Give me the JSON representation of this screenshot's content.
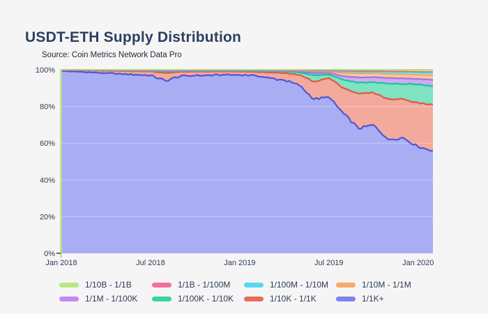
{
  "header": {
    "title": "USDT-ETH Supply Distribution",
    "source": "Source: Coin Metrics Network Data Pro"
  },
  "colors": {
    "background": "#f5f5f6",
    "title": "#2d3f5e",
    "label": "#2e3c52",
    "axis_line": "#b9e183",
    "zero_tick": "#3b4a57",
    "gridline": "rgba(255,255,255,0.38)"
  },
  "chart_data": {
    "type": "area",
    "stacking": "percent",
    "title": "USDT-ETH Supply Distribution",
    "xlabel": "",
    "ylabel": "",
    "ylim": [
      0,
      100
    ],
    "grid": "horizontal",
    "grid_values": [
      20,
      40,
      60,
      80
    ],
    "legend_position": "bottom",
    "y_tick_values": [
      0,
      20,
      40,
      60,
      80,
      100
    ],
    "y_tick_labels": [
      "0%",
      "20%",
      "40%",
      "60%",
      "80%",
      "100%"
    ],
    "x": [
      "2018-01",
      "2018-02",
      "2018-03",
      "2018-04",
      "2018-05",
      "2018-06",
      "2018-07",
      "2018-08",
      "2018-09",
      "2018-10",
      "2018-11",
      "2018-12",
      "2019-01",
      "2019-02",
      "2019-03",
      "2019-04",
      "2019-05",
      "2019-06",
      "2019-07",
      "2019-08",
      "2019-09",
      "2019-10",
      "2019-11",
      "2019-12",
      "2020-01",
      "2020-02"
    ],
    "x_tick_indices": [
      0,
      6,
      12,
      18,
      24
    ],
    "x_tick_labels": [
      "Jan 2018",
      "Jul 2018",
      "Jan 2019",
      "Jul 2019",
      "Jan 2020"
    ],
    "series": [
      {
        "name": "1/1K+",
        "stroke": "#5056d6",
        "fill": "#a9adf3",
        "legend_color": "#7d82ee",
        "values": [
          99.3,
          99.0,
          98.6,
          98.2,
          97.8,
          97.3,
          97.0,
          94.0,
          96.5,
          96.8,
          97.0,
          97.2,
          97.2,
          97.0,
          95.5,
          94.3,
          91.5,
          84.0,
          85.0,
          76.0,
          68.0,
          70.0,
          62.0,
          63.0,
          58.0,
          56.0
        ]
      },
      {
        "name": "1/10K - 1/1K",
        "stroke": "#e25840",
        "fill": "#f3a99c",
        "legend_color": "#ec6a56",
        "values": [
          0.5,
          0.7,
          1.0,
          1.3,
          1.6,
          1.9,
          2.1,
          4.3,
          2.4,
          2.2,
          2.0,
          1.9,
          1.8,
          1.9,
          3.0,
          3.9,
          5.7,
          9.5,
          10.5,
          14.0,
          19.0,
          17.5,
          22.0,
          21.0,
          24.0,
          25.0
        ]
      },
      {
        "name": "1/100K - 1/10K",
        "stroke": "#19c795",
        "fill": "#7fe2c0",
        "legend_color": "#36d49e",
        "values": [
          0.05,
          0.1,
          0.1,
          0.15,
          0.2,
          0.3,
          0.35,
          0.7,
          0.4,
          0.35,
          0.4,
          0.3,
          0.4,
          0.45,
          0.7,
          0.9,
          1.4,
          3.5,
          1.8,
          4.5,
          6.0,
          5.7,
          8.5,
          8.3,
          10.0,
          10.0
        ]
      },
      {
        "name": "1/1M - 1/100K",
        "stroke": "#a96cf0",
        "fill": "#cdabf5",
        "legend_color": "#c289f4",
        "values": [
          0.05,
          0.05,
          0.1,
          0.1,
          0.1,
          0.15,
          0.15,
          0.3,
          0.2,
          0.2,
          0.15,
          0.2,
          0.2,
          0.2,
          0.25,
          0.3,
          0.5,
          1.3,
          0.9,
          2.0,
          2.8,
          2.8,
          3.0,
          3.0,
          3.0,
          3.5
        ]
      },
      {
        "name": "1/10M - 1/1M",
        "stroke": "#f49b4e",
        "fill": "#f9c893",
        "legend_color": "#f9a868",
        "values": [
          0.03,
          0.05,
          0.07,
          0.1,
          0.1,
          0.12,
          0.15,
          0.3,
          0.2,
          0.15,
          0.15,
          0.12,
          0.12,
          0.15,
          0.2,
          0.2,
          0.35,
          0.7,
          0.7,
          1.7,
          2.2,
          2.0,
          2.3,
          2.3,
          2.3,
          2.5
        ]
      },
      {
        "name": "1/100M - 1/10M",
        "stroke": "#3fd2e6",
        "fill": "#9ce9f3",
        "legend_color": "#55d9ee",
        "values": [
          0.02,
          0.03,
          0.03,
          0.05,
          0.07,
          0.08,
          0.08,
          0.15,
          0.1,
          0.1,
          0.1,
          0.1,
          0.1,
          0.1,
          0.13,
          0.15,
          0.2,
          0.4,
          0.4,
          0.7,
          0.8,
          0.8,
          0.9,
          1.0,
          1.1,
          1.2
        ]
      },
      {
        "name": "1/1B - 1/100M",
        "stroke": "#f2638a",
        "fill": "#f8abc0",
        "legend_color": "#f76e94",
        "values": [
          0.02,
          0.03,
          0.05,
          0.05,
          0.06,
          0.07,
          0.08,
          0.12,
          0.1,
          0.1,
          0.1,
          0.08,
          0.08,
          0.1,
          0.1,
          0.12,
          0.15,
          0.25,
          0.3,
          0.5,
          0.5,
          0.5,
          0.5,
          0.5,
          0.6,
          0.7
        ]
      },
      {
        "name": "1/10B - 1/1B",
        "stroke": "#a5da62",
        "fill": "#cdeb9d",
        "legend_color": "#b7e885",
        "values": [
          0.03,
          0.04,
          0.05,
          0.05,
          0.07,
          0.08,
          0.09,
          0.13,
          0.1,
          0.1,
          0.1,
          0.1,
          0.1,
          0.1,
          0.12,
          0.13,
          0.2,
          0.35,
          0.4,
          0.6,
          0.7,
          0.7,
          0.8,
          0.9,
          1.0,
          1.1
        ]
      }
    ]
  }
}
